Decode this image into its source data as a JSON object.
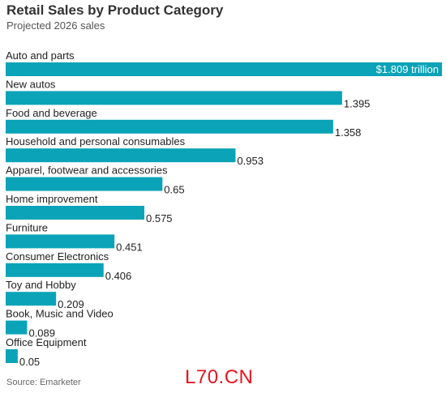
{
  "chart_data": {
    "type": "bar",
    "orientation": "horizontal",
    "title": "Retail Sales by Product Category",
    "subtitle": "Projected 2026 sales",
    "categories": [
      "Auto and parts",
      "New autos",
      "Food and beverage",
      "Household and personal consumables",
      "Apparel, footwear and accessories",
      "Home improvement",
      "Furniture",
      "Consumer Electronics",
      "Toy and Hobby",
      "Book, Music and Video",
      "Office Equipment"
    ],
    "values": [
      1.809,
      1.395,
      1.358,
      0.953,
      0.65,
      0.575,
      0.451,
      0.406,
      0.209,
      0.089,
      0.05
    ],
    "value_labels": [
      "$1.809 trillion",
      "1.395",
      "1.358",
      "0.953",
      "0.65",
      "0.575",
      "0.451",
      "0.406",
      "0.209",
      "0.089",
      "0.05"
    ],
    "xlim": [
      0,
      1.809
    ],
    "grid": false,
    "bar_color": "#0aa3b8",
    "source": "Source: Emarketer"
  },
  "watermark": "L70.CN"
}
